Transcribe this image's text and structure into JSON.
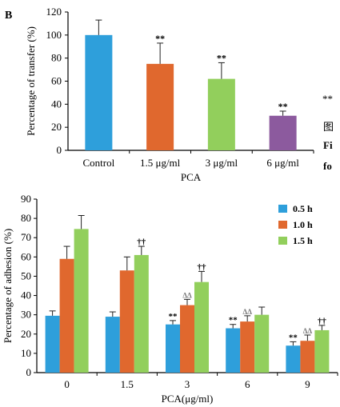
{
  "panel_label": "B",
  "side_fragments": [
    "**",
    "图",
    "Fi",
    "fo"
  ],
  "chart_data": [
    {
      "type": "bar",
      "categories": [
        "Control",
        "1.5 μg/ml",
        "3 μg/ml",
        "6 μg/ml"
      ],
      "values": [
        100,
        75,
        62,
        30
      ],
      "errors": [
        13,
        18,
        14,
        4
      ],
      "significance": [
        "",
        "**",
        "**",
        "**"
      ],
      "colors": [
        "#2E9FDB",
        "#E0682E",
        "#92CF5C",
        "#8C5A9E"
      ],
      "xlabel": "PCA",
      "ylabel": "Percentage of transfer (%)",
      "ylim": [
        0,
        120
      ],
      "yticks": [
        0,
        20,
        40,
        60,
        80,
        100,
        120
      ]
    },
    {
      "type": "bar",
      "categories": [
        "0",
        "1.5",
        "3",
        "6",
        "9"
      ],
      "series": [
        {
          "name": "0.5 h",
          "color": "#2E9FDB",
          "values": [
            29.5,
            29,
            25,
            23,
            14
          ],
          "errors": [
            2.5,
            2.5,
            2,
            2,
            2
          ],
          "marks": [
            "",
            "",
            "**",
            "**",
            "**"
          ]
        },
        {
          "name": "1.0 h",
          "color": "#E0682E",
          "values": [
            59,
            53,
            35,
            26.5,
            16.5
          ],
          "errors": [
            6.5,
            7,
            3,
            3,
            3
          ],
          "marks": [
            "",
            "",
            "ΔΔ",
            "ΔΔ",
            "ΔΔ"
          ]
        },
        {
          "name": "1.5 h",
          "color": "#92CF5C",
          "values": [
            74.5,
            61,
            47,
            30,
            22
          ],
          "errors": [
            7,
            4.5,
            5.5,
            4,
            2.5
          ],
          "marks": [
            "",
            "††",
            "††",
            "",
            "††"
          ]
        }
      ],
      "xlabel": "PCA(μg/ml)",
      "ylabel": "Percentage of adhesion (%)",
      "ylim": [
        0,
        90
      ],
      "yticks": [
        0,
        10,
        20,
        30,
        40,
        50,
        60,
        70,
        80,
        90
      ],
      "legend": "top-right"
    }
  ]
}
